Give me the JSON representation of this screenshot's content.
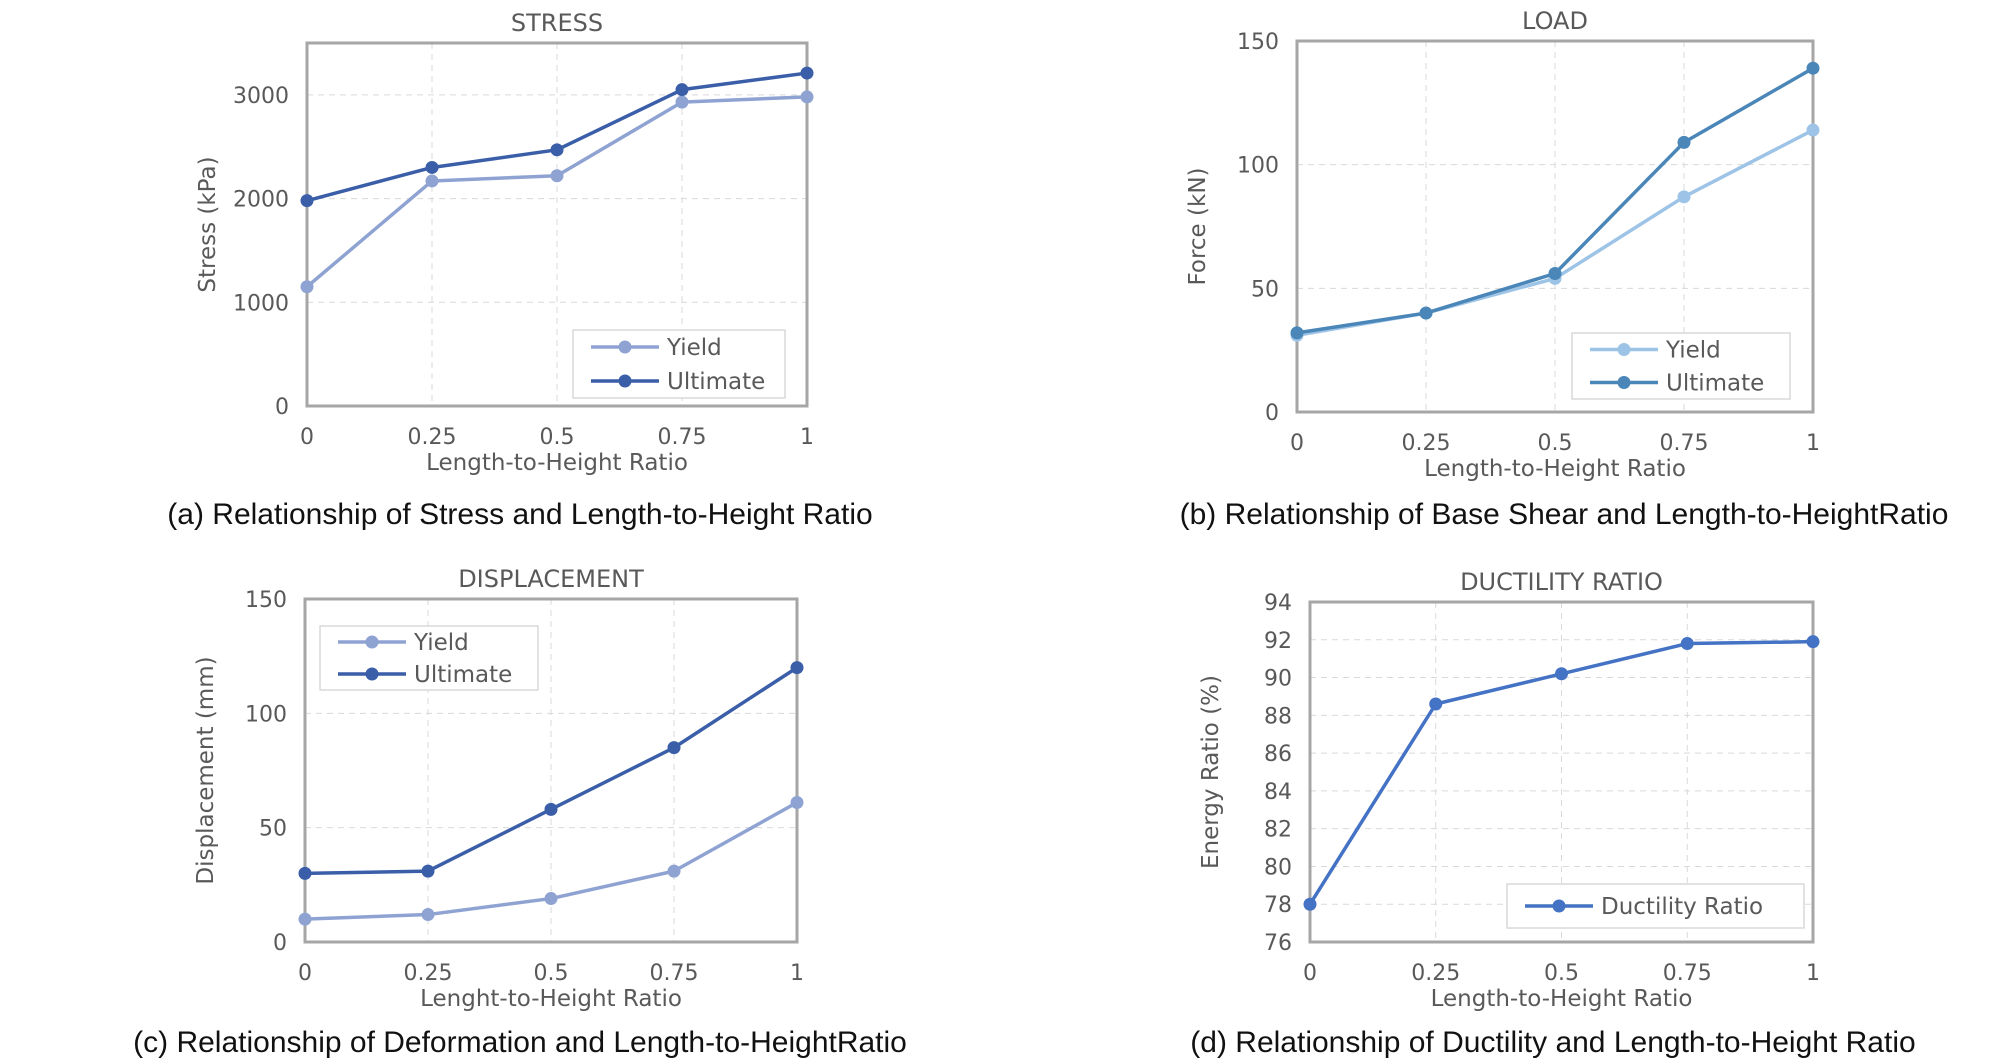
{
  "colors": {
    "axis": "#a6a6a6",
    "grid": "#d9d9d9",
    "text": "#595959",
    "yield_a": "#8fa3d3",
    "ultimate_a": "#3a5ea8",
    "yield_b": "#9dc3e6",
    "ultimate_b": "#4a86b8",
    "ductility": "#4472c4"
  },
  "captions": {
    "a": "(a) Relationship of Stress and Length-to-Height Ratio",
    "b": "(b) Relationship of Base Shear and Length-to-HeightRatio",
    "c": "(c) Relationship of Deformation and Length-to-HeightRatio",
    "d": "(d) Relationship of Ductility and Length-to-Height Ratio"
  },
  "chart_data": [
    {
      "id": "a",
      "type": "line",
      "title": "STRESS",
      "xlabel": "Length-to-Height Ratio",
      "ylabel": "Stress (kPa)",
      "categories": [
        "0",
        "0.25",
        "0.5",
        "0.75",
        "1"
      ],
      "ylim": [
        0,
        3500
      ],
      "yticks": [
        0,
        1000,
        2000,
        3000
      ],
      "grid": true,
      "legend_position": "bottom-right",
      "series": [
        {
          "name": "Yield",
          "color_key": "yield_a",
          "values": [
            1150,
            2170,
            2220,
            2930,
            2980
          ]
        },
        {
          "name": "Ultimate",
          "color_key": "ultimate_a",
          "values": [
            1980,
            2300,
            2470,
            3050,
            3210
          ]
        }
      ]
    },
    {
      "id": "b",
      "type": "line",
      "title": "LOAD",
      "xlabel": "Length-to-Height Ratio",
      "ylabel": "Force (kN)",
      "categories": [
        "0",
        "0.25",
        "0.5",
        "0.75",
        "1"
      ],
      "ylim": [
        0,
        150
      ],
      "yticks": [
        0,
        50,
        100,
        150
      ],
      "grid": true,
      "legend_position": "bottom-right",
      "series": [
        {
          "name": "Yield",
          "color_key": "yield_b",
          "values": [
            31,
            40,
            54,
            87,
            114
          ]
        },
        {
          "name": "Ultimate",
          "color_key": "ultimate_b",
          "values": [
            32,
            40,
            56,
            109,
            139
          ]
        }
      ]
    },
    {
      "id": "c",
      "type": "line",
      "title": "DISPLACEMENT",
      "xlabel": "Lenght-to-Height Ratio",
      "ylabel": "Displacement (mm)",
      "categories": [
        "0",
        "0.25",
        "0.5",
        "0.75",
        "1"
      ],
      "ylim": [
        0,
        150
      ],
      "yticks": [
        0,
        50,
        100,
        150
      ],
      "grid": true,
      "legend_position": "top-left",
      "series": [
        {
          "name": "Yield",
          "color_key": "yield_a",
          "values": [
            10,
            12,
            19,
            31,
            61
          ]
        },
        {
          "name": "Ultimate",
          "color_key": "ultimate_a",
          "values": [
            30,
            31,
            58,
            85,
            120
          ]
        }
      ]
    },
    {
      "id": "d",
      "type": "line",
      "title": "DUCTILITY RATIO",
      "xlabel": "Length-to-Height Ratio",
      "ylabel": "Energy Ratio (%)",
      "categories": [
        "0",
        "0.25",
        "0.5",
        "0.75",
        "1"
      ],
      "ylim": [
        76,
        94
      ],
      "yticks": [
        76,
        78,
        80,
        82,
        84,
        86,
        88,
        90,
        92,
        94
      ],
      "grid": true,
      "legend_position": "bottom-right",
      "series": [
        {
          "name": "Ductility Ratio",
          "color_key": "ductility",
          "values": [
            78,
            88.6,
            90.2,
            91.8,
            91.9
          ]
        }
      ]
    }
  ]
}
